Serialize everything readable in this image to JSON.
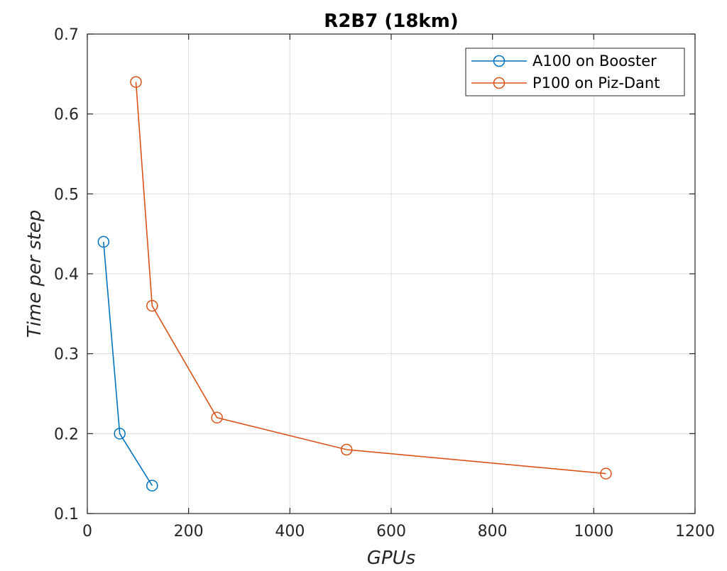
{
  "chart_data": {
    "type": "line",
    "title": "R2B7 (18km)",
    "xlabel": "GPUs",
    "ylabel": "Time per step",
    "xlim": [
      0,
      1200
    ],
    "ylim": [
      0.1,
      0.7
    ],
    "xticks": [
      0,
      200,
      400,
      600,
      800,
      1000,
      1200
    ],
    "yticks": [
      0.1,
      0.2,
      0.3,
      0.4,
      0.5,
      0.6,
      0.7
    ],
    "xtick_labels": [
      "0",
      "200",
      "400",
      "600",
      "800",
      "1000",
      "1200"
    ],
    "ytick_labels": [
      "0.1",
      "0.2",
      "0.3",
      "0.4",
      "0.5",
      "0.6",
      "0.7"
    ],
    "grid": true,
    "legend_position": "top-right",
    "series": [
      {
        "name": "A100 on Booster",
        "color": "#0072BD",
        "marker": "circle",
        "x": [
          32,
          64,
          128
        ],
        "y": [
          0.44,
          0.2,
          0.135
        ]
      },
      {
        "name": "P100 on Piz-Dant",
        "color": "#D95319",
        "marker": "circle",
        "x": [
          96,
          128,
          256,
          512,
          1024
        ],
        "y": [
          0.64,
          0.36,
          0.22,
          0.18,
          0.15
        ]
      }
    ]
  }
}
